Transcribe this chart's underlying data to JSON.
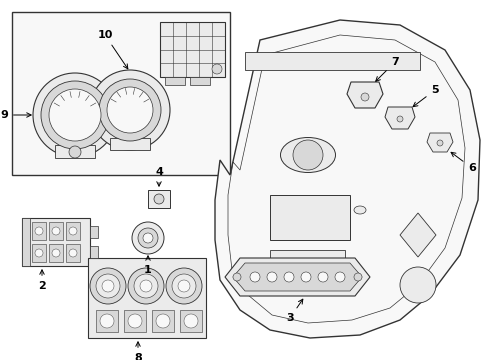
{
  "bg_color": "#ffffff",
  "line_color": "#333333",
  "fill_light": "#f8f8f8",
  "fill_mid": "#ebebeb",
  "fill_dark": "#d8d8d8",
  "figsize": [
    4.89,
    3.6
  ],
  "dpi": 100,
  "xlim": [
    0,
    489
  ],
  "ylim": [
    0,
    360
  ]
}
